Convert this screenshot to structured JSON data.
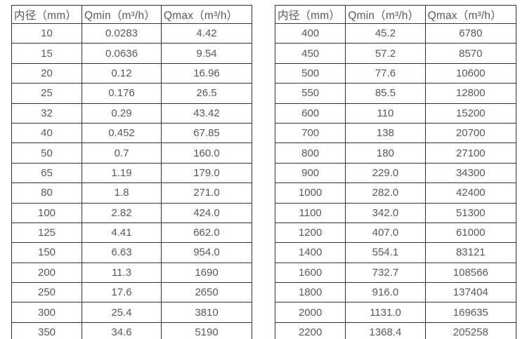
{
  "colors": {
    "background": "#ffffff",
    "border": "#333333",
    "text": "#595959"
  },
  "chart_data": [
    {
      "type": "table",
      "title": "",
      "headers": [
        "内径（mm）",
        "Qmin（m³/h）",
        "Qmax（m³/h）"
      ],
      "rows": [
        [
          "10",
          "0.0283",
          "4.42"
        ],
        [
          "15",
          "0.0636",
          "9.54"
        ],
        [
          "20",
          "0.12",
          "16.96"
        ],
        [
          "25",
          "0.176",
          "26.5"
        ],
        [
          "32",
          "0.29",
          "43.42"
        ],
        [
          "40",
          "0.452",
          "67.85"
        ],
        [
          "50",
          "0.7",
          "160.0"
        ],
        [
          "65",
          "1.19",
          "179.0"
        ],
        [
          "80",
          "1.8",
          "271.0"
        ],
        [
          "100",
          "2.82",
          "424.0"
        ],
        [
          "125",
          "4.41",
          "662.0"
        ],
        [
          "150",
          "6.63",
          "954.0"
        ],
        [
          "200",
          "11.3",
          "1690"
        ],
        [
          "250",
          "17.6",
          "2650"
        ],
        [
          "300",
          "25.4",
          "3810"
        ],
        [
          "350",
          "34.6",
          "5190"
        ]
      ]
    },
    {
      "type": "table",
      "title": "",
      "headers": [
        "内径（mm）",
        "Qmin（m³/h）",
        "Qmax（m³/h）"
      ],
      "rows": [
        [
          "400",
          "45.2",
          "6780"
        ],
        [
          "450",
          "57.2",
          "8570"
        ],
        [
          "500",
          "77.6",
          "10600"
        ],
        [
          "550",
          "85.5",
          "12800"
        ],
        [
          "600",
          "110",
          "15200"
        ],
        [
          "700",
          "138",
          "20700"
        ],
        [
          "800",
          "180",
          "27100"
        ],
        [
          "900",
          "229.0",
          "34300"
        ],
        [
          "1000",
          "282.0",
          "42400"
        ],
        [
          "1100",
          "342.0",
          "51300"
        ],
        [
          "1200",
          "407.0",
          "61000"
        ],
        [
          "1400",
          "554.1",
          "83121"
        ],
        [
          "1600",
          "732.7",
          "108566"
        ],
        [
          "1800",
          "916.0",
          "137404"
        ],
        [
          "2000",
          "1131.0",
          "169635"
        ],
        [
          "2200",
          "1368.4",
          "205258"
        ]
      ]
    }
  ]
}
